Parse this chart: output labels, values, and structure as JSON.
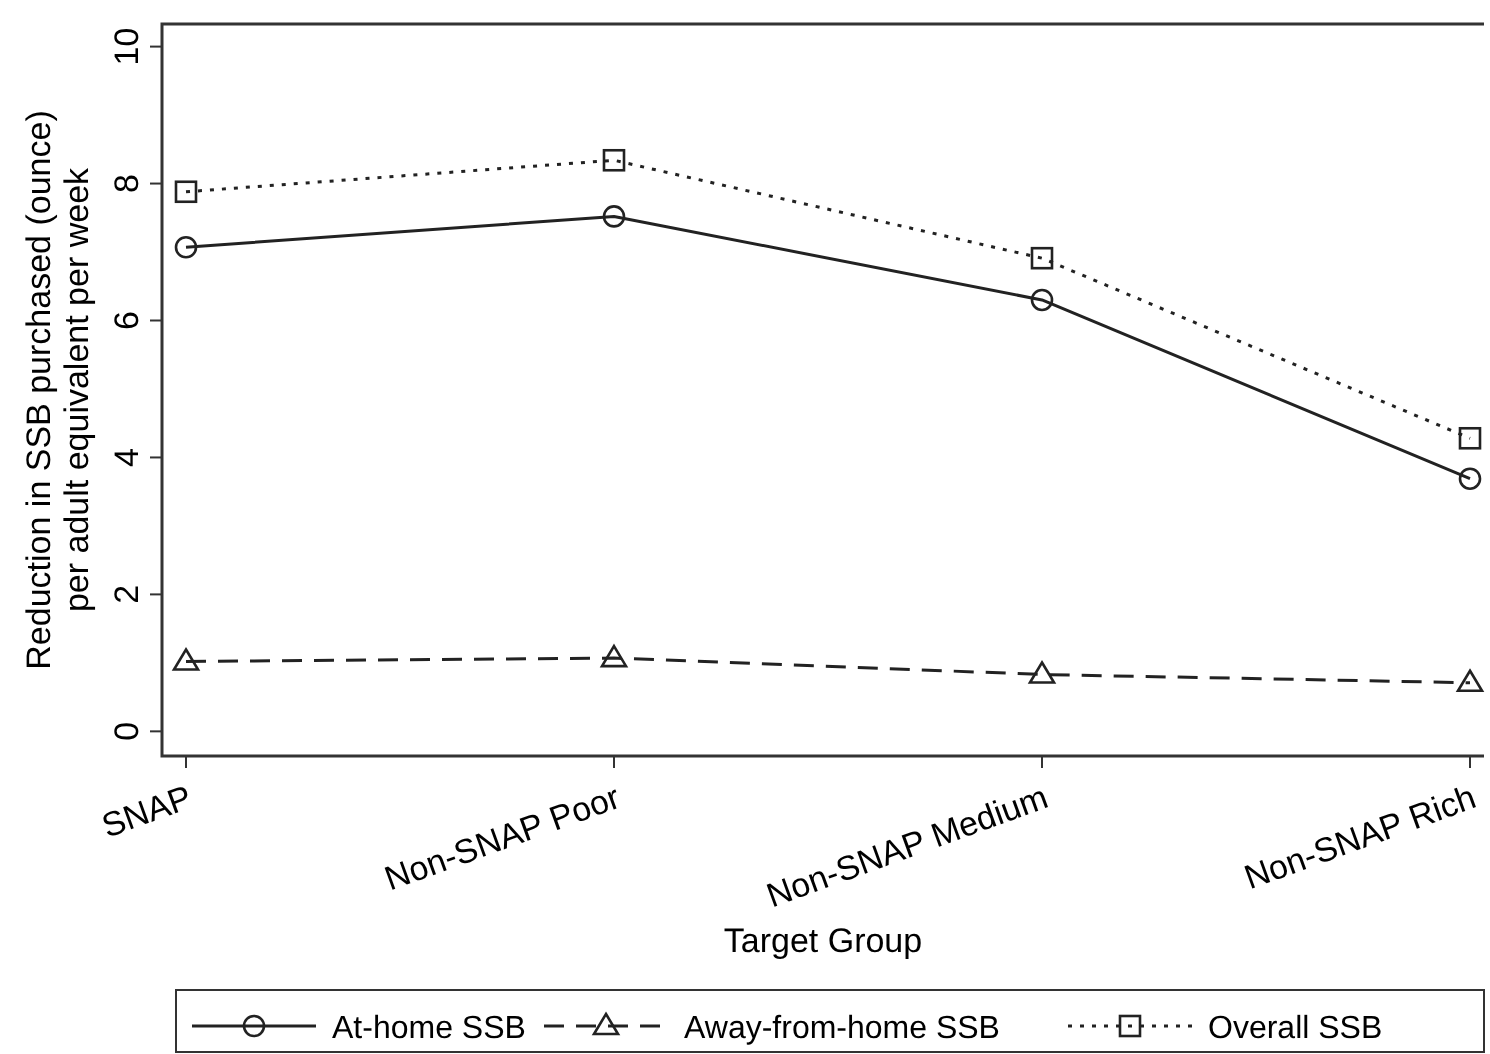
{
  "chart_data": {
    "type": "line",
    "xlabel": "Target Group",
    "ylabel": "Reduction in SSB purchased (ounce)\nper adult equivalent per week",
    "categories": [
      "SNAP",
      "Non-SNAP Poor",
      "Non-SNAP Medium",
      "Non-SNAP Rich"
    ],
    "ylim": [
      -0.36,
      10.33
    ],
    "yticks": [
      0,
      2,
      4,
      6,
      8,
      10
    ],
    "grid": false,
    "legend": "bottom",
    "series": [
      {
        "name": "At-home SSB",
        "color": "#222222",
        "marker": "circle",
        "line_style": "solid",
        "values": [
          7.07,
          7.52,
          6.3,
          3.69
        ]
      },
      {
        "name": "Away-from-home SSB",
        "color": "#222222",
        "marker": "triangle",
        "line_style": "dashed",
        "values": [
          1.02,
          1.07,
          0.83,
          0.71
        ]
      },
      {
        "name": "Overall SSB",
        "color": "#222222",
        "marker": "square",
        "line_style": "dotted",
        "values": [
          7.88,
          8.34,
          6.91,
          4.28
        ]
      }
    ]
  }
}
